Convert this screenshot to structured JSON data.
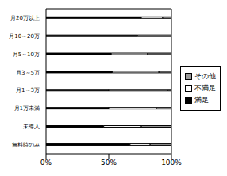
{
  "chart_data": {
    "type": "bar",
    "orientation": "horizontal",
    "stacked": true,
    "categories": [
      "月20万以上",
      "月10～20万",
      "月5～10万",
      "月3～5万",
      "月1～3万",
      "月1万未満",
      "未導入",
      "無料時のみ"
    ],
    "series": [
      {
        "name": "満足",
        "color": "#000000",
        "values": [
          76,
          73,
          52,
          53,
          50,
          50,
          46,
          67
        ]
      },
      {
        "name": "不満足",
        "color": "#ffffff",
        "values": [
          17,
          27,
          29,
          37,
          47,
          38,
          30,
          16
        ]
      },
      {
        "name": "その他",
        "color": "#999999",
        "values": [
          7,
          0,
          19,
          10,
          3,
          12,
          24,
          17
        ]
      }
    ],
    "xlim": [
      0,
      100
    ],
    "xticks": [
      {
        "value": 0,
        "label": "0%"
      },
      {
        "value": 50,
        "label": "50%"
      },
      {
        "value": 100,
        "label": "100%"
      }
    ],
    "grid": false,
    "legend": "right"
  }
}
